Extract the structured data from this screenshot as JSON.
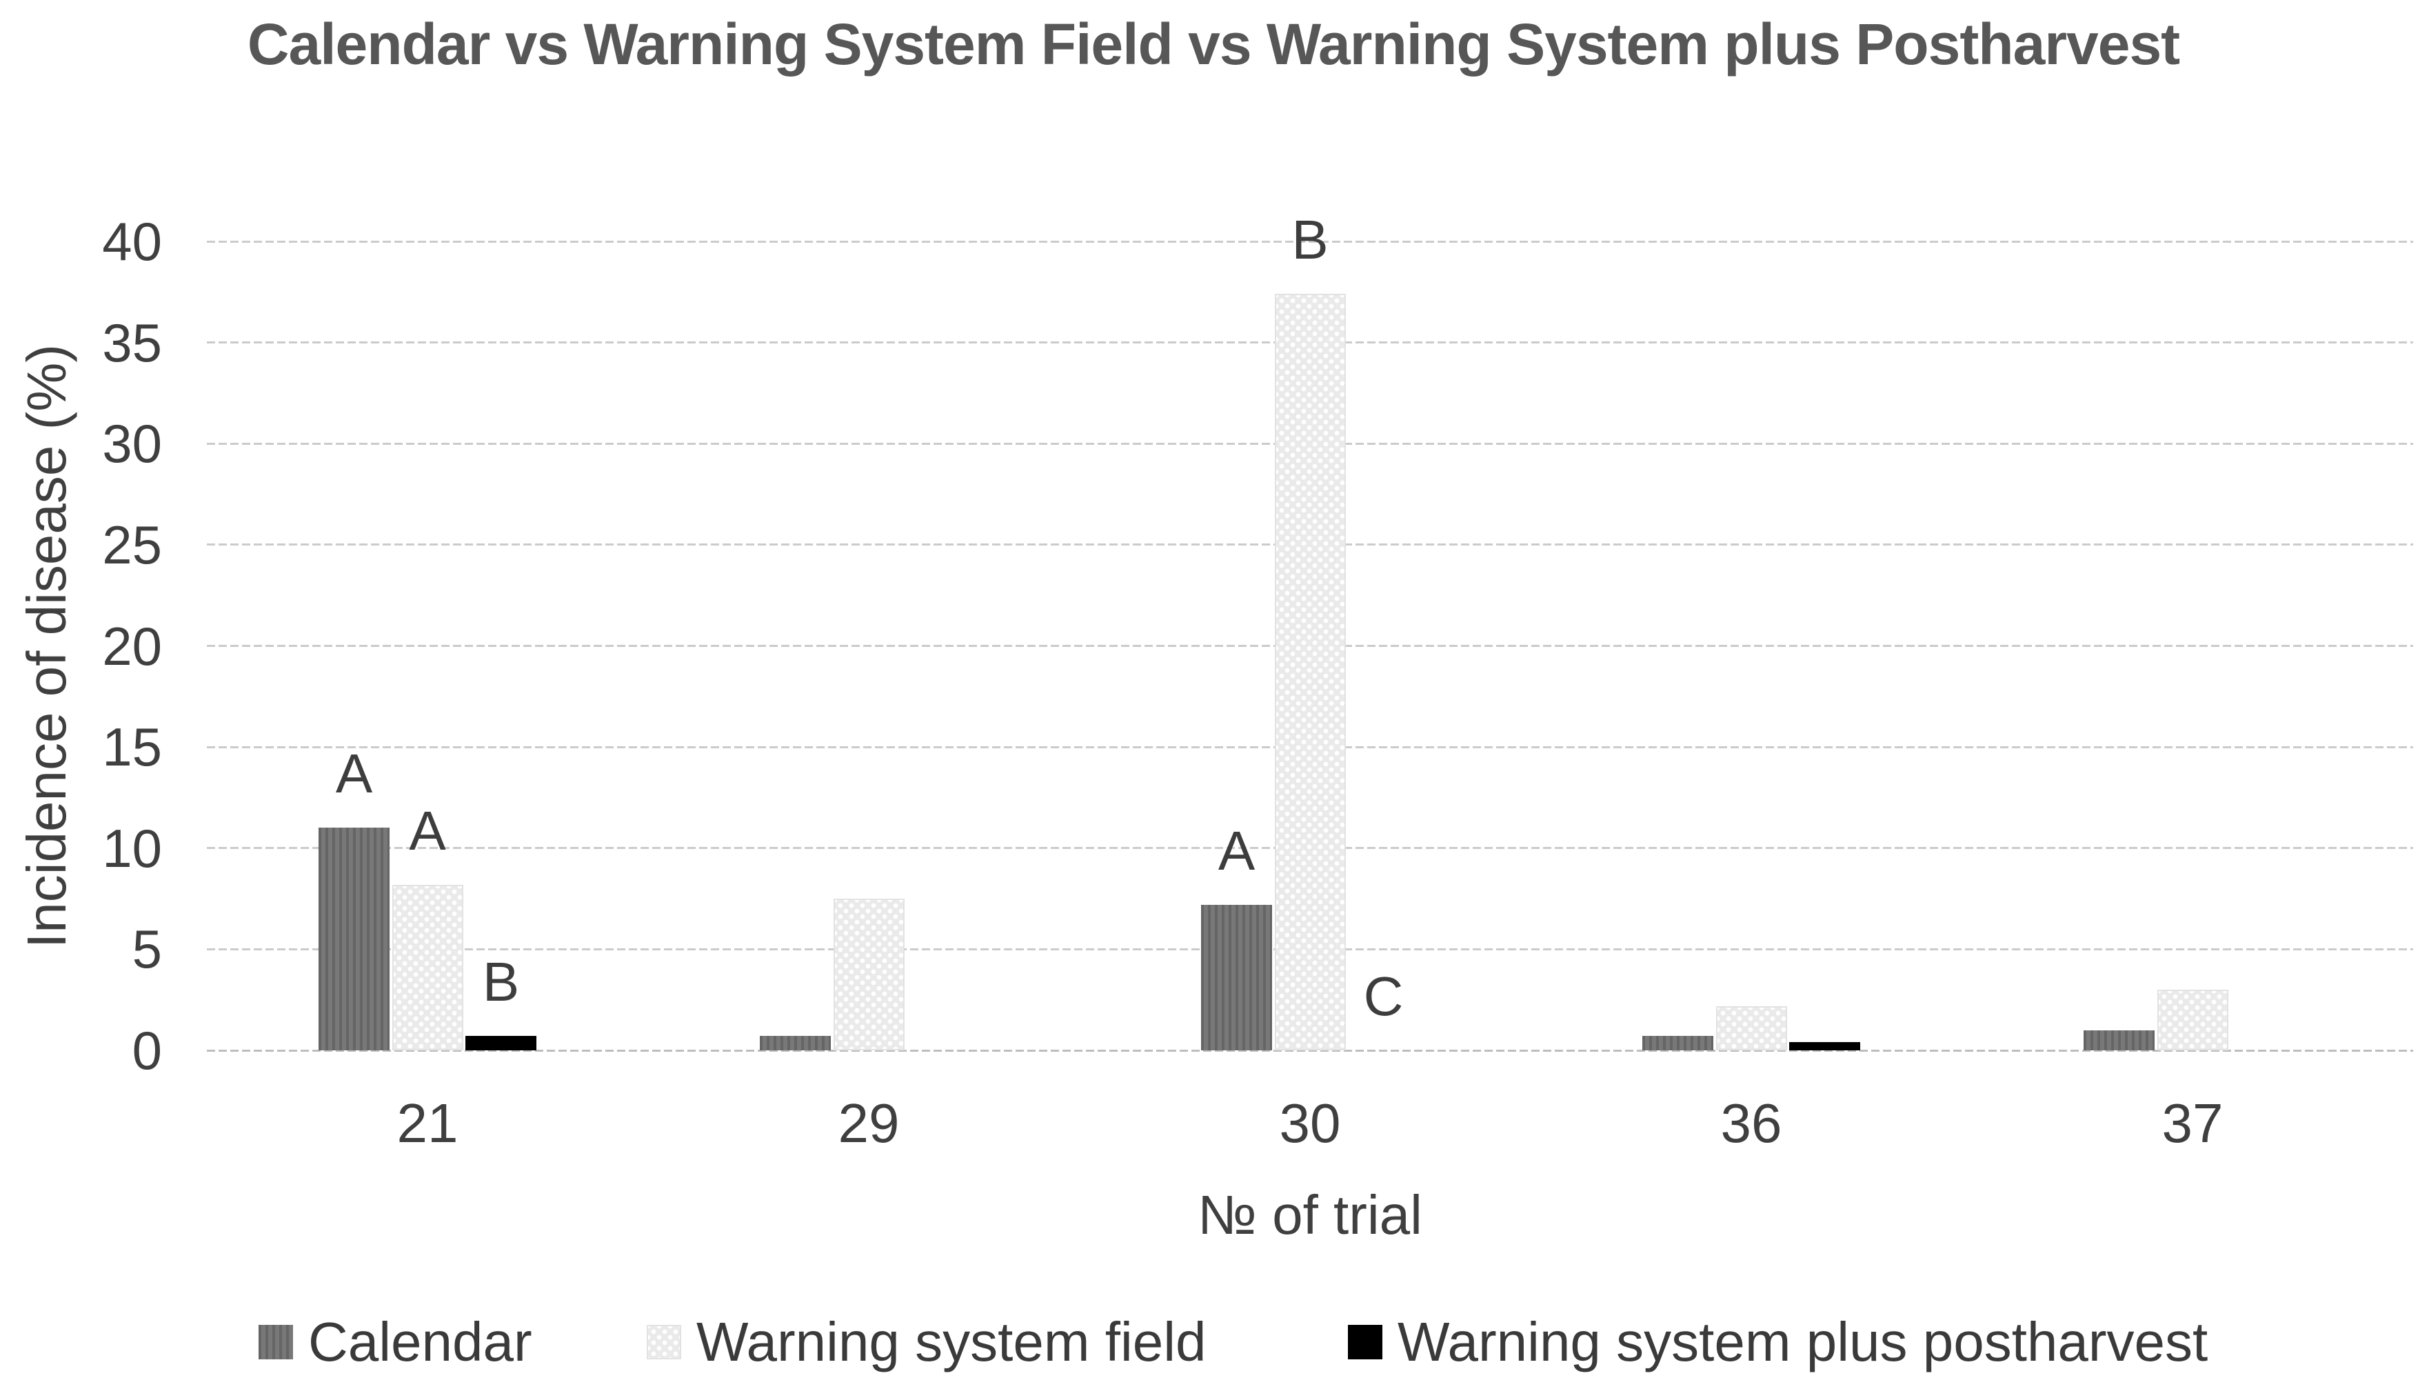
{
  "chart_data": {
    "type": "bar",
    "title": "Calendar vs Warning System Field vs Warning System  plus Postharvest",
    "xlabel": "№ of trial",
    "ylabel": "Incidence of disease (%)",
    "ylim": [
      0,
      40
    ],
    "ytick_step": 5,
    "yticks": [
      0,
      5,
      10,
      15,
      20,
      25,
      30,
      35,
      40
    ],
    "grid": true,
    "legend_position": "bottom",
    "categories": [
      "21",
      "29",
      "30",
      "36",
      "37"
    ],
    "series": [
      {
        "name": "Calendar",
        "color": "#6e6e6e",
        "pattern": "vertical-stripes",
        "values": [
          11.0,
          0.7,
          7.2,
          0.7,
          1.0
        ]
      },
      {
        "name": "Warning system field",
        "color": "#eaeaea",
        "pattern": "dots",
        "values": [
          8.2,
          7.5,
          37.4,
          2.2,
          3.0
        ]
      },
      {
        "name": "Warning system plus postharvest",
        "color": "#000000",
        "pattern": "solid",
        "values": [
          0.7,
          0,
          0,
          0.4,
          0
        ]
      }
    ],
    "annotations": [
      {
        "category": "21",
        "series": "Calendar",
        "text": "A"
      },
      {
        "category": "21",
        "series": "Warning system field",
        "text": "A"
      },
      {
        "category": "21",
        "series": "Warning system plus postharvest",
        "text": "B"
      },
      {
        "category": "30",
        "series": "Calendar",
        "text": "A"
      },
      {
        "category": "30",
        "series": "Warning system field",
        "text": "B"
      },
      {
        "category": "30",
        "series": "Warning system plus postharvest",
        "text": "C"
      }
    ]
  },
  "colors": {
    "title_text": "#575757",
    "axis_text": "#3f3f3f",
    "gridline": "#cbcbcb",
    "background": "#ffffff"
  }
}
